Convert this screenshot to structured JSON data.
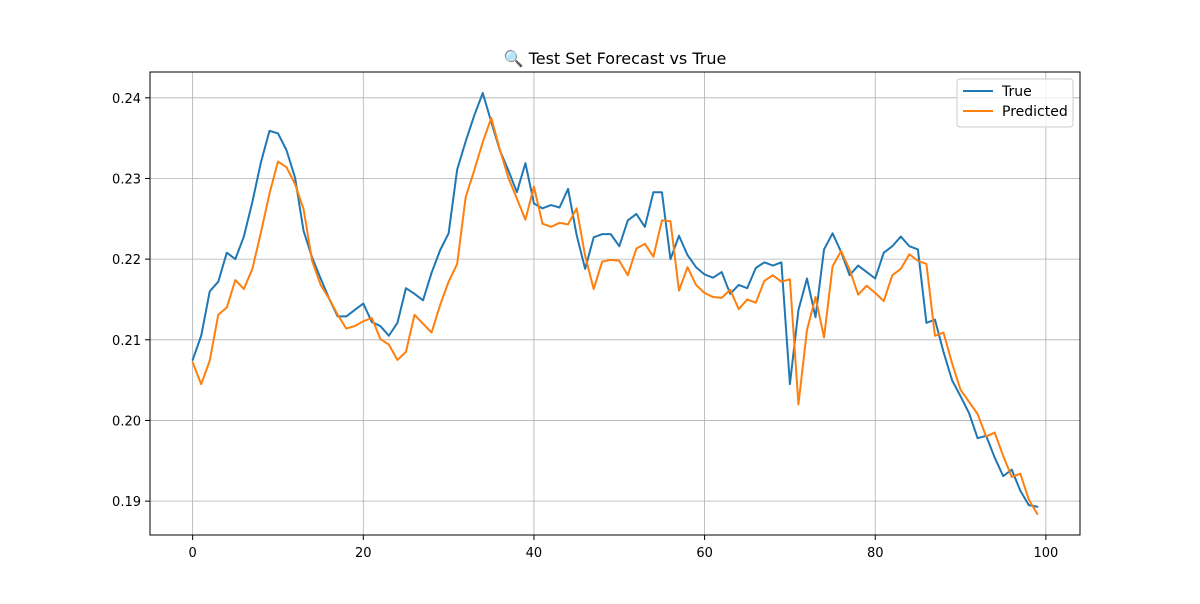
{
  "chart_data": {
    "type": "line",
    "title": "🔍 Test Set Forecast vs True",
    "xlabel": "",
    "ylabel": "",
    "xlim": [
      -5,
      104
    ],
    "ylim": [
      0.1858,
      0.2432
    ],
    "x_ticks": [
      0,
      20,
      40,
      60,
      80,
      100
    ],
    "x_tick_labels": [
      "0",
      "20",
      "40",
      "60",
      "80",
      "100"
    ],
    "y_ticks": [
      0.19,
      0.2,
      0.21,
      0.22,
      0.23,
      0.24
    ],
    "y_tick_labels": [
      "0.19",
      "0.20",
      "0.21",
      "0.22",
      "0.23",
      "0.24"
    ],
    "grid": true,
    "legend_position": "top-right",
    "series": [
      {
        "name": "True",
        "color": "#1f77b4",
        "values": [
          0.2075,
          0.2105,
          0.216,
          0.2172,
          0.2208,
          0.22,
          0.2228,
          0.2271,
          0.232,
          0.2359,
          0.2356,
          0.2335,
          0.2301,
          0.2235,
          0.2202,
          0.2176,
          0.2151,
          0.2129,
          0.2129,
          0.2137,
          0.2145,
          0.2122,
          0.2117,
          0.2105,
          0.2121,
          0.2164,
          0.2157,
          0.2149,
          0.2183,
          0.2211,
          0.2232,
          0.2311,
          0.2346,
          0.2378,
          0.2406,
          0.237,
          0.2335,
          0.231,
          0.2283,
          0.2319,
          0.2269,
          0.2263,
          0.2267,
          0.2264,
          0.2287,
          0.223,
          0.2188,
          0.2227,
          0.2231,
          0.2231,
          0.2216,
          0.2248,
          0.2256,
          0.224,
          0.2283,
          0.2283,
          0.22,
          0.2229,
          0.2205,
          0.219,
          0.2181,
          0.2177,
          0.2184,
          0.2157,
          0.2168,
          0.2164,
          0.2189,
          0.2196,
          0.2192,
          0.2196,
          0.2045,
          0.2137,
          0.2176,
          0.2128,
          0.2212,
          0.2232,
          0.2209,
          0.218,
          0.2192,
          0.2184,
          0.2176,
          0.2208,
          0.2216,
          0.2228,
          0.2216,
          0.2212,
          0.2121,
          0.2125,
          0.2085,
          0.205,
          0.203,
          0.2009,
          0.1978,
          0.1981,
          0.1954,
          0.1931,
          0.1939,
          0.1913,
          0.1895,
          0.1893
        ]
      },
      {
        "name": "Predicted",
        "color": "#ff7f0e",
        "values": [
          0.2072,
          0.2045,
          0.2074,
          0.2131,
          0.214,
          0.2174,
          0.2163,
          0.2188,
          0.2233,
          0.2281,
          0.2321,
          0.2314,
          0.2293,
          0.2262,
          0.2198,
          0.2168,
          0.2151,
          0.2131,
          0.2114,
          0.2117,
          0.2123,
          0.2127,
          0.2101,
          0.2094,
          0.2075,
          0.2085,
          0.2131,
          0.212,
          0.2109,
          0.2143,
          0.2172,
          0.2194,
          0.2277,
          0.231,
          0.2345,
          0.2375,
          0.2336,
          0.2301,
          0.2275,
          0.2249,
          0.229,
          0.2244,
          0.224,
          0.2245,
          0.2243,
          0.2263,
          0.2204,
          0.2163,
          0.2197,
          0.2199,
          0.2198,
          0.218,
          0.2213,
          0.2219,
          0.2203,
          0.2248,
          0.2247,
          0.2161,
          0.219,
          0.2168,
          0.2158,
          0.2153,
          0.2152,
          0.2162,
          0.2138,
          0.215,
          0.2146,
          0.2173,
          0.218,
          0.2172,
          0.2175,
          0.202,
          0.2112,
          0.2153,
          0.2103,
          0.2191,
          0.221,
          0.2187,
          0.2156,
          0.2167,
          0.2158,
          0.2148,
          0.218,
          0.2188,
          0.2206,
          0.2198,
          0.2194,
          0.2105,
          0.2109,
          0.2071,
          0.2038,
          0.2023,
          0.2008,
          0.198,
          0.1985,
          0.1956,
          0.193,
          0.1934,
          0.1902,
          0.1884
        ]
      }
    ]
  }
}
